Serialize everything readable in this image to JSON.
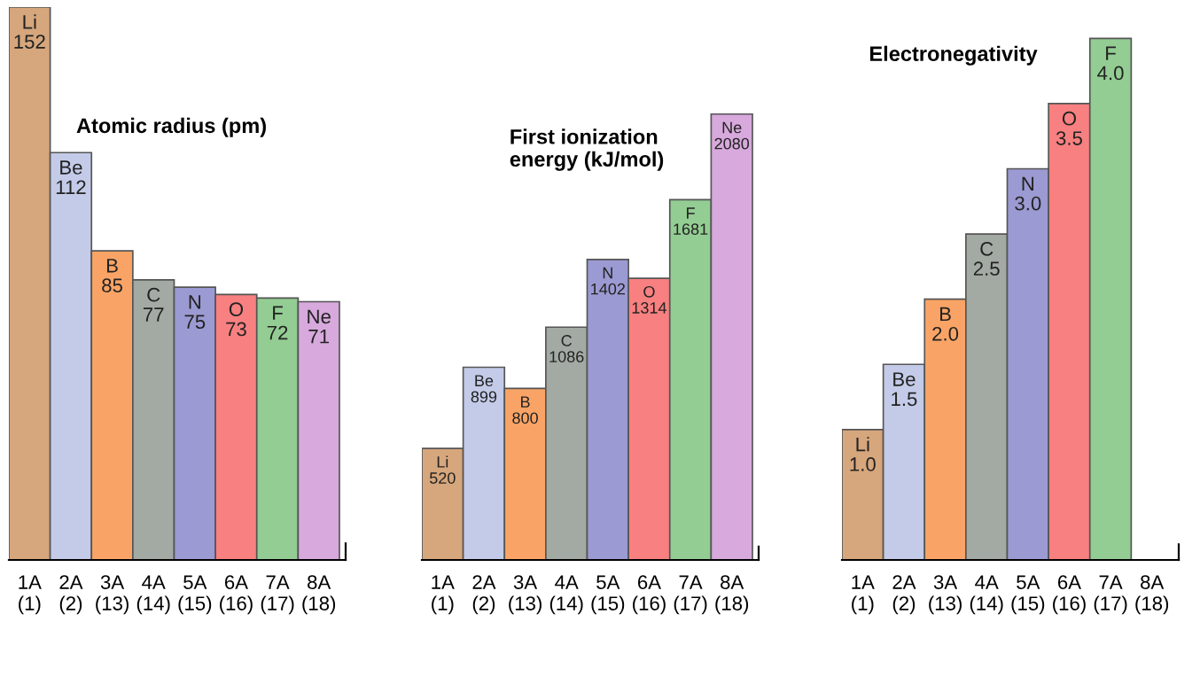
{
  "chart_data": [
    {
      "type": "bar",
      "title": "Atomic radius (pm)",
      "categories": [
        "1A\n(1)",
        "2A\n(2)",
        "3A\n(13)",
        "4A\n(14)",
        "5A\n(15)",
        "6A\n(16)",
        "7A\n(17)",
        "8A\n(18)"
      ],
      "values": [
        152,
        112,
        85,
        77,
        75,
        73,
        72,
        71
      ],
      "value_labels": [
        "Li\n152",
        "Be\n112",
        "B\n85",
        "C\n77",
        "N\n75",
        "O\n73",
        "F\n72",
        "Ne\n71"
      ],
      "colors": [
        "#d6a67c",
        "#c3cbe8",
        "#f9a466",
        "#a3aaa3",
        "#9c9ad2",
        "#f88080",
        "#93cd93",
        "#d7a9dc"
      ]
    },
    {
      "type": "bar",
      "title": "First ionization\nenergy (kJ/mol)",
      "categories": [
        "1A\n(1)",
        "2A\n(2)",
        "3A\n(13)",
        "4A\n(14)",
        "5A\n(15)",
        "6A\n(16)",
        "7A\n(17)",
        "8A\n(18)"
      ],
      "values": [
        520,
        899,
        800,
        1086,
        1402,
        1314,
        1681,
        2080
      ],
      "value_labels": [
        "Li\n520",
        "Be\n899",
        "B\n800",
        "C\n1086",
        "N\n1402",
        "O\n1314",
        "F\n1681",
        "Ne\n2080"
      ],
      "colors": [
        "#d6a67c",
        "#c3cbe8",
        "#f9a466",
        "#a3aaa3",
        "#9c9ad2",
        "#f88080",
        "#93cd93",
        "#d7a9dc"
      ]
    },
    {
      "type": "bar",
      "title": "Electronegativity",
      "categories": [
        "1A\n(1)",
        "2A\n(2)",
        "3A\n(13)",
        "4A\n(14)",
        "5A\n(15)",
        "6A\n(16)",
        "7A\n(17)",
        "8A\n(18)"
      ],
      "values": [
        1.0,
        1.5,
        2.0,
        2.5,
        3.0,
        3.5,
        4.0,
        null
      ],
      "value_labels": [
        "Li\n1.0",
        "Be\n1.5",
        "B\n2.0",
        "C\n2.5",
        "N\n3.0",
        "O\n3.5",
        "F\n4.0",
        null
      ],
      "colors": [
        "#d6a67c",
        "#c3cbe8",
        "#f9a466",
        "#a3aaa3",
        "#9c9ad2",
        "#f88080",
        "#93cd93",
        "#d7a9dc"
      ]
    }
  ]
}
